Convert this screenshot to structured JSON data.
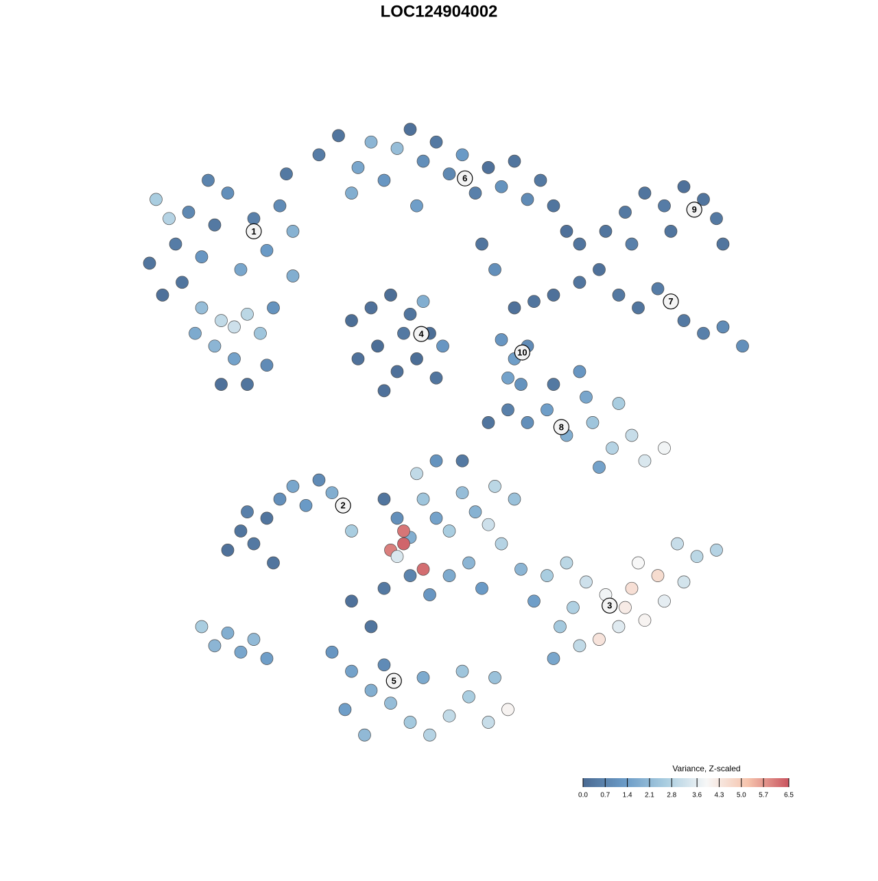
{
  "chart_data": {
    "type": "scatter",
    "title": "LOC124904002",
    "xlim": [
      0,
      100
    ],
    "ylim": [
      0,
      100
    ],
    "x": [
      4,
      6,
      8,
      10,
      12,
      14,
      16,
      18,
      20,
      22,
      24,
      26,
      9,
      12,
      15,
      17,
      19,
      21,
      14,
      17,
      15,
      19,
      22,
      5,
      7,
      25,
      23,
      11,
      26,
      13,
      30,
      33,
      36,
      38,
      40,
      42,
      44,
      46,
      48,
      50,
      52,
      54,
      56,
      58,
      60,
      62,
      64,
      66,
      35,
      45,
      68,
      70,
      55,
      57,
      74,
      77,
      80,
      83,
      86,
      89,
      91,
      92,
      78,
      84,
      66,
      70,
      73,
      76,
      79,
      82,
      86,
      89,
      92,
      95,
      60,
      63,
      35,
      38,
      41,
      44,
      47,
      36,
      39,
      42,
      45,
      48,
      40,
      43,
      46,
      49,
      58,
      60,
      62,
      59,
      61,
      56,
      59,
      62,
      65,
      68,
      72,
      75,
      78,
      80,
      83,
      76,
      73,
      66,
      70,
      71,
      16,
      18,
      20,
      22,
      24,
      26,
      28,
      30,
      32,
      35,
      19,
      23,
      40,
      42,
      44,
      46,
      48,
      50,
      52,
      54,
      56,
      58,
      43,
      43,
      41,
      46,
      42,
      44,
      40,
      47,
      50,
      53,
      55,
      57,
      60,
      48,
      52,
      45,
      35,
      38,
      63,
      61,
      65,
      68,
      71,
      74,
      77,
      80,
      83,
      86,
      88,
      85,
      79,
      76,
      73,
      70,
      67,
      82,
      78,
      91,
      66,
      69,
      32,
      35,
      38,
      41,
      44,
      47,
      50,
      53,
      56,
      59,
      34,
      40,
      46,
      52,
      37,
      57,
      12,
      14,
      16,
      18,
      20,
      22
    ],
    "y": [
      77,
      72,
      80,
      85,
      78,
      83,
      88,
      76,
      84,
      79,
      86,
      75,
      74,
      70,
      68,
      67,
      69,
      66,
      64,
      62,
      58,
      58,
      61,
      87,
      84,
      91,
      70,
      66,
      82,
      90,
      94,
      97,
      92,
      96,
      90,
      95,
      98,
      93,
      96,
      91,
      94,
      88,
      92,
      89,
      93,
      87,
      90,
      86,
      88,
      86,
      82,
      80,
      80,
      76,
      82,
      85,
      88,
      86,
      89,
      87,
      84,
      80,
      80,
      82,
      72,
      74,
      76,
      72,
      70,
      73,
      68,
      66,
      67,
      64,
      70,
      71,
      68,
      70,
      72,
      69,
      66,
      62,
      64,
      60,
      62,
      59,
      57,
      66,
      71,
      64,
      65,
      62,
      64,
      59,
      58,
      52,
      54,
      52,
      54,
      50,
      52,
      48,
      50,
      46,
      48,
      55,
      45,
      58,
      60,
      56,
      32,
      35,
      33,
      37,
      40,
      42,
      39,
      43,
      41,
      35,
      38,
      30,
      40,
      37,
      34,
      40,
      37,
      35,
      41,
      38,
      36,
      33,
      35,
      33,
      32,
      29,
      31,
      28,
      26,
      25,
      28,
      30,
      26,
      42,
      40,
      46,
      46,
      44,
      24,
      20,
      24,
      29,
      28,
      30,
      27,
      25,
      23,
      21,
      24,
      27,
      31,
      33,
      30,
      20,
      18,
      17,
      20,
      28,
      26,
      32,
      15,
      23,
      16,
      13,
      10,
      8,
      5,
      3,
      6,
      9,
      5,
      7,
      7,
      14,
      12,
      13,
      3,
      12,
      20,
      17,
      19,
      16,
      18,
      15
    ],
    "values": [
      0.3,
      0.2,
      0.5,
      0.8,
      1.2,
      0.4,
      1.0,
      1.6,
      0.6,
      1.3,
      0.9,
      1.8,
      0.3,
      2.2,
      3.0,
      3.2,
      2.9,
      2.4,
      2.0,
      1.5,
      0.2,
      0.3,
      0.9,
      2.6,
      2.8,
      0.4,
      1.1,
      1.7,
      1.9,
      0.7,
      0.5,
      0.3,
      1.6,
      2.0,
      1.2,
      2.2,
      0.2,
      1.0,
      0.4,
      0.8,
      1.3,
      0.6,
      0.2,
      1.1,
      0.3,
      0.9,
      0.4,
      0.3,
      1.8,
      1.4,
      0.2,
      0.3,
      0.3,
      1.0,
      0.3,
      0.4,
      0.3,
      0.5,
      0.2,
      0.3,
      0.4,
      0.3,
      0.6,
      0.3,
      0.2,
      0.3,
      0.2,
      0.4,
      0.3,
      0.5,
      0.4,
      0.6,
      0.9,
      1.0,
      0.2,
      0.3,
      0.1,
      0.2,
      0.1,
      0.3,
      0.1,
      0.2,
      0.1,
      0.2,
      0.1,
      0.3,
      0.2,
      0.4,
      1.8,
      1.2,
      1.2,
      1.4,
      0.9,
      1.5,
      1.1,
      0.3,
      0.6,
      1.0,
      1.4,
      1.8,
      2.4,
      2.8,
      3.1,
      3.4,
      3.8,
      2.6,
      1.5,
      0.4,
      1.2,
      1.6,
      0.2,
      0.3,
      0.4,
      0.3,
      1.0,
      1.6,
      1.3,
      0.9,
      1.8,
      2.6,
      0.6,
      0.3,
      0.3,
      1.0,
      1.8,
      2.4,
      1.5,
      2.6,
      2.2,
      1.9,
      3.2,
      2.8,
      6.1,
      6.3,
      6.0,
      6.2,
      3.4,
      0.7,
      0.4,
      1.2,
      1.7,
      2.0,
      1.3,
      2.9,
      2.3,
      1.1,
      0.4,
      3.0,
      0.2,
      0.3,
      1.4,
      2.0,
      2.6,
      2.9,
      3.2,
      3.8,
      4.2,
      4.0,
      3.6,
      3.3,
      2.9,
      3.1,
      3.9,
      3.5,
      4.4,
      3.0,
      2.5,
      4.6,
      4.5,
      2.8,
      1.6,
      2.7,
      1.2,
      1.5,
      1.8,
      2.2,
      2.5,
      2.8,
      3.0,
      2.6,
      3.1,
      4.0,
      1.4,
      0.9,
      1.7,
      2.4,
      2.1,
      2.3,
      2.6,
      2.0,
      1.8,
      1.6,
      2.1,
      1.4
    ],
    "cluster_labels": [
      {
        "label": "1",
        "x": 20,
        "y": 82
      },
      {
        "label": "2",
        "x": 33.7,
        "y": 39
      },
      {
        "label": "3",
        "x": 74.6,
        "y": 23.3
      },
      {
        "label": "4",
        "x": 45.7,
        "y": 65.9
      },
      {
        "label": "5",
        "x": 41.5,
        "y": 11.5
      },
      {
        "label": "6",
        "x": 52.4,
        "y": 90.3
      },
      {
        "label": "7",
        "x": 84,
        "y": 71
      },
      {
        "label": "8",
        "x": 67.2,
        "y": 51.3
      },
      {
        "label": "9",
        "x": 87.6,
        "y": 85.4
      },
      {
        "label": "10",
        "x": 61.2,
        "y": 63
      }
    ],
    "colorbar": {
      "title": "Variance, Z-scaled",
      "lim": [
        0,
        6.5
      ],
      "colors": [
        "#4a6a92",
        "#6a9ac6",
        "#a9cde0",
        "#f7f7f7",
        "#f6c4ad",
        "#c9545f"
      ],
      "ticks": [
        {
          "value": 0,
          "label": "0.0"
        },
        0.7,
        1.4,
        2.1,
        2.8,
        3.6,
        4.3,
        {
          "value": 5,
          "label": "5.0"
        },
        5.7,
        6.5
      ]
    },
    "grid": false
  }
}
